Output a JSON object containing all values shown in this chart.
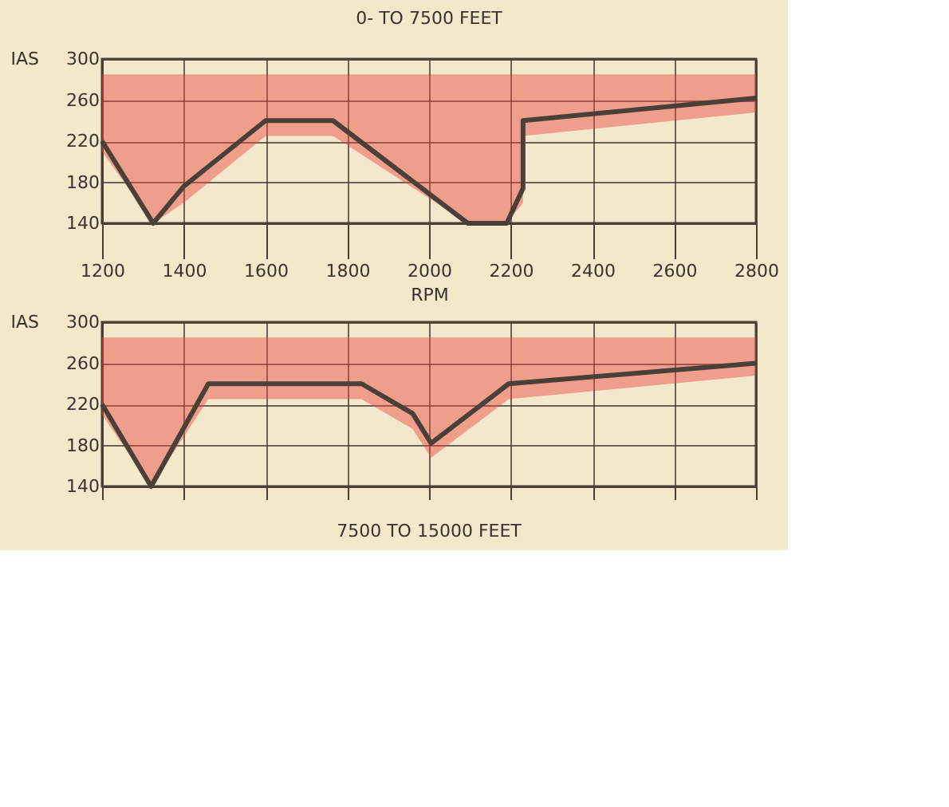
{
  "chart_data": [
    {
      "type": "line",
      "title": "0- TO 7500 FEET",
      "xlabel": "RPM",
      "ylabel": "IAS",
      "xlim": [
        1200,
        2800
      ],
      "ylim": [
        140,
        300
      ],
      "xticks": [
        1200,
        1400,
        1600,
        1800,
        2000,
        2200,
        2400,
        2600,
        2800
      ],
      "yticks": [
        140,
        180,
        220,
        260,
        300
      ],
      "grid": true,
      "line_style": "solid",
      "marker": "none",
      "series": [
        {
          "color": "#4a4038",
          "x": [
            1200,
            1325,
            1400,
            1600,
            1765,
            2095,
            2190,
            2230,
            2230,
            2800
          ],
          "values": [
            220,
            140,
            176,
            240,
            240,
            140,
            140,
            174,
            240,
            262
          ],
          "lower": [
            210,
            140,
            160,
            225,
            225,
            140,
            140,
            160,
            225,
            248
          ],
          "upper": [
            285,
            285,
            285,
            285,
            285,
            285,
            285,
            285,
            285,
            285
          ]
        }
      ]
    },
    {
      "type": "line",
      "title": "7500 TO 15000 FEET",
      "ylabel": "IAS",
      "xlim": [
        1200,
        2800
      ],
      "ylim": [
        140,
        300
      ],
      "xticks": [
        1200,
        1400,
        1600,
        1800,
        2000,
        2200,
        2400,
        2600,
        2800
      ],
      "yticks": [
        140,
        180,
        220,
        260,
        300
      ],
      "grid": true,
      "tick_labels": "y",
      "line_style": "solid",
      "marker": "none",
      "series": [
        {
          "color": "#4a4038",
          "x": [
            1200,
            1320,
            1460,
            1835,
            1960,
            2005,
            2195,
            2800
          ],
          "values": [
            220,
            140,
            240,
            240,
            211,
            182,
            240,
            260
          ],
          "lower": [
            210,
            140,
            225,
            225,
            196,
            168,
            225,
            248
          ],
          "upper": [
            285,
            285,
            285,
            285,
            285,
            285,
            285,
            285
          ]
        }
      ]
    }
  ]
}
